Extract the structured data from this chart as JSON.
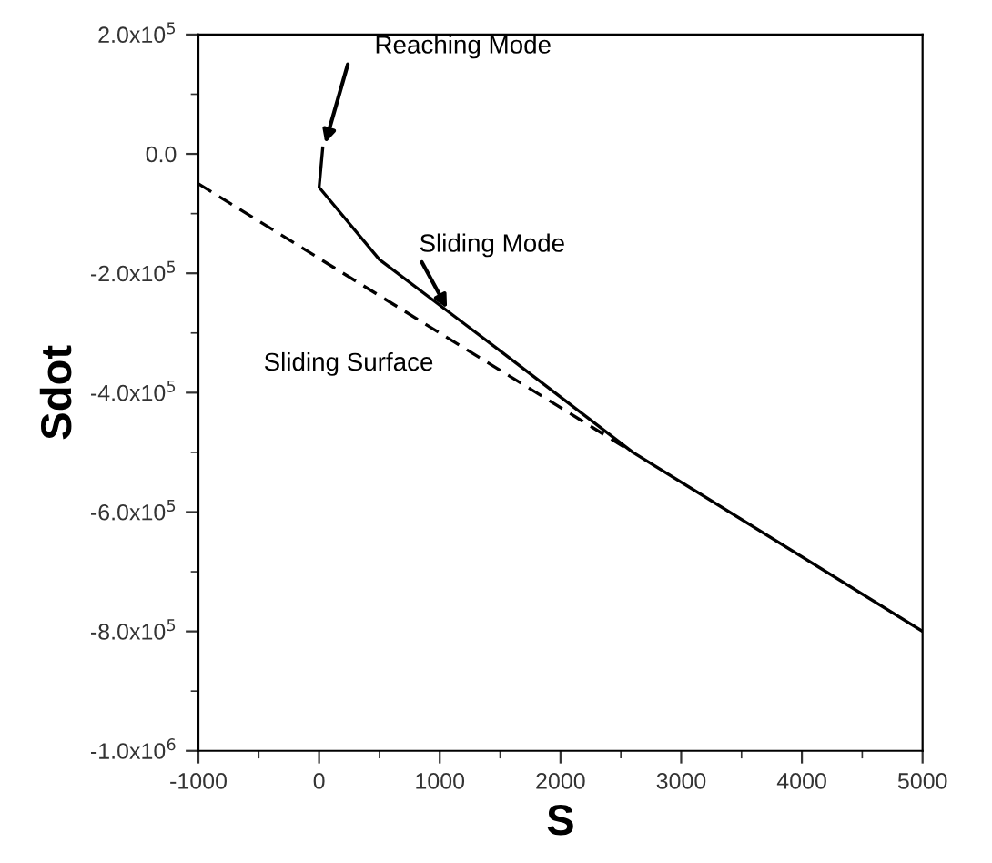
{
  "chart_data": {
    "type": "line",
    "xlabel": "S",
    "ylabel": "Sdot",
    "series": [
      {
        "color": "#000000",
        "line_style": "solid",
        "x": [
          30,
          0,
          500,
          1500,
          2600,
          5000
        ],
        "values": [
          10000,
          -56000,
          -177000,
          -330000,
          -500000,
          -800000
        ]
      },
      {
        "color": "#000000",
        "line_style": "dashed",
        "x": [
          -1000,
          2600
        ],
        "values": [
          -50000,
          -500000
        ]
      }
    ],
    "annotations": [
      {
        "text": "Reaching Mode",
        "x": 40,
        "y": 10000
      },
      {
        "text": "Sliding Mode",
        "x": 1080,
        "y": -266000
      },
      "Sliding Surface"
    ],
    "xlim": [
      -1000,
      5000
    ],
    "xticks": [
      -1000,
      0,
      1000,
      2000,
      3000,
      4000,
      5000
    ],
    "ylim": [
      -1000000,
      200000
    ],
    "yticks": [
      {
        "value": -1000000,
        "label": "-1.0x10$^{6}$"
      },
      {
        "value": -800000,
        "label": "-8.0x10$^{5}$"
      },
      {
        "value": -600000,
        "label": "-6.0x10$^{5}$"
      },
      {
        "value": -400000,
        "label": "-4.0x10$^{5}$"
      },
      {
        "value": -200000,
        "label": "-2.0x10$^{5}$"
      },
      {
        "value": 0,
        "label": "0.0"
      },
      {
        "value": 200000,
        "label": "2.0x10$^{5}$"
      }
    ],
    "grid": false,
    "legend": false,
    "marker": "none"
  }
}
